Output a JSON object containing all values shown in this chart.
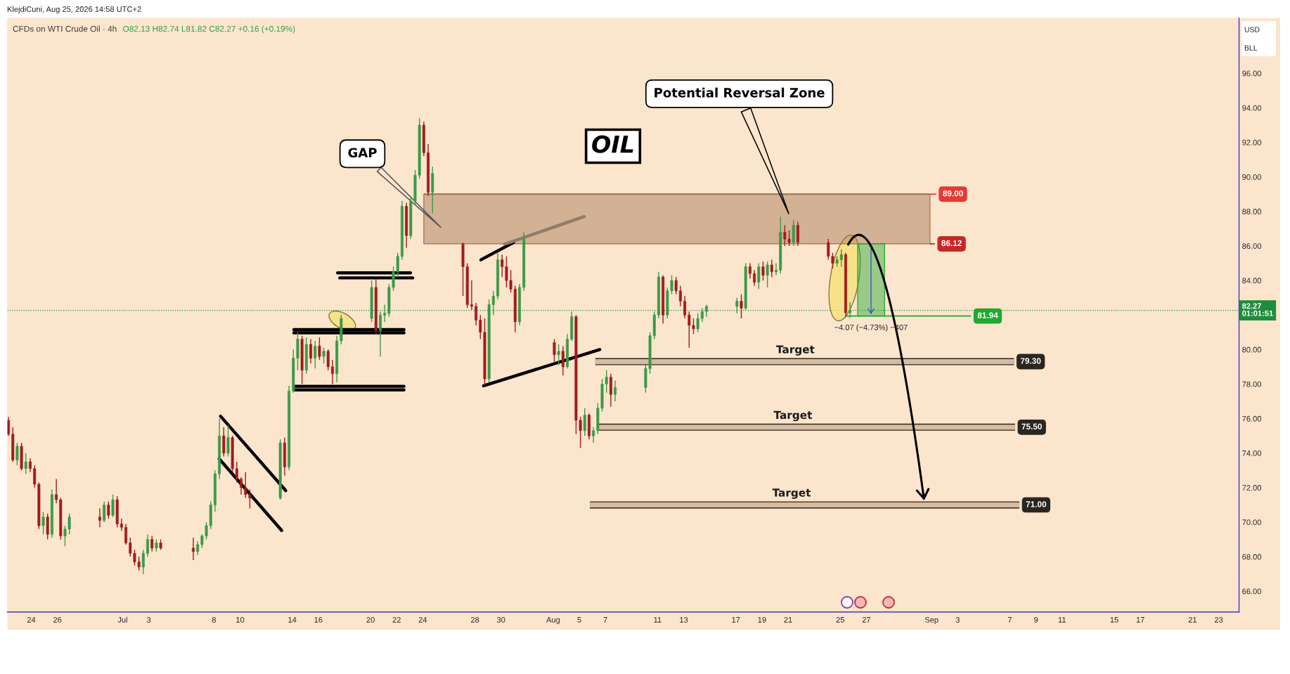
{
  "chart_data": {
    "type": "candlestick",
    "title": "CFDs on WTI Crude Oil · 4h",
    "subtitle": "O82.13 H82.74 L81.82 C82.27 +0.16 (+0.19%)",
    "x": [
      "2026-06-22T06:00",
      "2026-06-22T14:00",
      "2026-06-22T22:00",
      "2026-06-23T06:00",
      "2026-06-23T14:00",
      "2026-06-23T22:00",
      "2026-06-24T06:00",
      "2026-06-24T14:00",
      "2026-06-24T22:00",
      "2026-06-25T06:00",
      "2026-06-25T14:00",
      "2026-06-25T22:00",
      "2026-06-26T06:00",
      "2026-06-26T14:00",
      "2026-06-26T22:00",
      "2026-06-29T06:00",
      "2026-06-29T14:00",
      "2026-06-29T22:00",
      "2026-06-30T06:00",
      "2026-06-30T14:00",
      "2026-06-30T22:00",
      "2026-07-01T06:00",
      "2026-07-01T14:00",
      "2026-07-01T22:00",
      "2026-07-02T06:00",
      "2026-07-02T14:00",
      "2026-07-02T22:00",
      "2026-07-03T06:00",
      "2026-07-03T14:00",
      "2026-07-03T22:00",
      "2026-07-06T10:00",
      "2026-07-06T18:00",
      "2026-07-07T02:00",
      "2026-07-07T10:00",
      "2026-07-07T18:00",
      "2026-07-08T02:00",
      "2026-07-08T10:00",
      "2026-07-08T18:00",
      "2026-07-09T02:00",
      "2026-07-09T10:00",
      "2026-07-09T18:00",
      "2026-07-10T02:00",
      "2026-07-10T10:00",
      "2026-07-10T18:00",
      "2026-07-13T02:00",
      "2026-07-13T10:00",
      "2026-07-13T18:00",
      "2026-07-14T02:00",
      "2026-07-14T10:00",
      "2026-07-14T18:00",
      "2026-07-15T02:00",
      "2026-07-15T10:00",
      "2026-07-15T18:00",
      "2026-07-16T02:00",
      "2026-07-16T10:00",
      "2026-07-16T18:00",
      "2026-07-17T02:00",
      "2026-07-17T10:00",
      "2026-07-17T18:00",
      "2026-07-20T02:00",
      "2026-07-20T10:00",
      "2026-07-20T18:00",
      "2026-07-21T02:00",
      "2026-07-21T10:00",
      "2026-07-21T18:00",
      "2026-07-22T02:00",
      "2026-07-22T10:00",
      "2026-07-22T18:00",
      "2026-07-23T02:00",
      "2026-07-23T10:00",
      "2026-07-23T18:00",
      "2026-07-24T02:00",
      "2026-07-24T10:00",
      "2026-07-24T18:00",
      "2026-07-27T02:00",
      "2026-07-27T10:00",
      "2026-07-27T18:00",
      "2026-07-28T02:00",
      "2026-07-28T10:00",
      "2026-07-28T18:00",
      "2026-07-29T02:00",
      "2026-07-29T10:00",
      "2026-07-29T18:00",
      "2026-07-30T02:00",
      "2026-07-30T10:00",
      "2026-07-30T18:00",
      "2026-07-31T02:00",
      "2026-07-31T10:00",
      "2026-07-31T18:00",
      "2026-08-03T02:00",
      "2026-08-03T10:00",
      "2026-08-03T18:00",
      "2026-08-04T02:00",
      "2026-08-04T10:00",
      "2026-08-04T18:00",
      "2026-08-05T02:00",
      "2026-08-05T10:00",
      "2026-08-05T18:00",
      "2026-08-06T02:00",
      "2026-08-06T10:00",
      "2026-08-06T18:00",
      "2026-08-07T02:00",
      "2026-08-07T10:00",
      "2026-08-07T18:00",
      "2026-08-10T02:00",
      "2026-08-10T10:00",
      "2026-08-10T18:00",
      "2026-08-11T02:00",
      "2026-08-11T10:00",
      "2026-08-11T18:00",
      "2026-08-12T02:00",
      "2026-08-12T10:00",
      "2026-08-12T18:00",
      "2026-08-13T02:00",
      "2026-08-13T10:00",
      "2026-08-13T18:00",
      "2026-08-14T02:00",
      "2026-08-14T10:00",
      "2026-08-14T18:00",
      "2026-08-17T02:00",
      "2026-08-17T10:00",
      "2026-08-17T18:00",
      "2026-08-18T02:00",
      "2026-08-18T10:00",
      "2026-08-18T18:00",
      "2026-08-19T02:00",
      "2026-08-19T10:00",
      "2026-08-19T18:00",
      "2026-08-20T02:00",
      "2026-08-20T10:00",
      "2026-08-20T18:00",
      "2026-08-21T02:00",
      "2026-08-21T10:00",
      "2026-08-21T18:00",
      "2026-08-24T02:00",
      "2026-08-24T10:00",
      "2026-08-24T18:00",
      "2026-08-25T02:00",
      "2026-08-25T10:00",
      "2026-08-25T18:00"
    ],
    "ohlc": [
      [
        75.9,
        76.1,
        75.0,
        75.1
      ],
      [
        75.1,
        75.5,
        73.5,
        73.6
      ],
      [
        73.6,
        74.6,
        73.3,
        74.4
      ],
      [
        74.4,
        74.6,
        73.0,
        73.1
      ],
      [
        73.1,
        74.0,
        72.8,
        73.5
      ],
      [
        73.5,
        73.7,
        72.9,
        73.1
      ],
      [
        73.1,
        73.3,
        72.0,
        72.2
      ],
      [
        72.2,
        72.3,
        69.6,
        69.8
      ],
      [
        69.8,
        70.6,
        69.3,
        70.3
      ],
      [
        70.3,
        70.5,
        69.0,
        69.3
      ],
      [
        69.3,
        71.9,
        69.1,
        71.6
      ],
      [
        71.6,
        72.5,
        71.1,
        71.3
      ],
      [
        71.3,
        71.4,
        69.0,
        69.2
      ],
      [
        69.2,
        69.8,
        68.6,
        69.6
      ],
      [
        69.6,
        70.5,
        69.3,
        70.3
      ],
      [
        70.3,
        70.8,
        69.7,
        70.1
      ],
      [
        70.1,
        71.2,
        70.0,
        71.0
      ],
      [
        71.0,
        71.2,
        70.2,
        70.4
      ],
      [
        70.4,
        71.6,
        70.3,
        71.3
      ],
      [
        71.3,
        71.5,
        69.7,
        69.9
      ],
      [
        69.9,
        70.2,
        69.5,
        69.7
      ],
      [
        69.7,
        69.9,
        68.7,
        68.8
      ],
      [
        68.8,
        69.1,
        68.0,
        68.2
      ],
      [
        68.2,
        68.4,
        67.5,
        67.7
      ],
      [
        67.7,
        68.0,
        67.2,
        67.4
      ],
      [
        67.4,
        68.4,
        67.0,
        68.2
      ],
      [
        68.2,
        69.3,
        68.0,
        69.0
      ],
      [
        69.0,
        69.2,
        68.3,
        68.5
      ],
      [
        68.5,
        69.0,
        68.3,
        68.8
      ],
      [
        68.8,
        69.0,
        68.4,
        68.5
      ],
      [
        68.5,
        69.1,
        67.8,
        68.3
      ],
      [
        68.3,
        68.9,
        68.1,
        68.7
      ],
      [
        68.7,
        69.3,
        68.5,
        69.2
      ],
      [
        69.2,
        70.0,
        69.0,
        69.8
      ],
      [
        69.8,
        71.2,
        69.6,
        71.0
      ],
      [
        71.0,
        73.0,
        70.6,
        72.8
      ],
      [
        72.8,
        76.0,
        72.5,
        75.0
      ],
      [
        75.0,
        75.5,
        73.8,
        74.0
      ],
      [
        74.0,
        75.6,
        73.8,
        74.9
      ],
      [
        74.9,
        75.0,
        72.9,
        73.1
      ],
      [
        73.1,
        73.5,
        72.3,
        72.5
      ],
      [
        72.5,
        72.6,
        71.6,
        72.0
      ],
      [
        72.0,
        72.9,
        71.4,
        71.6
      ],
      [
        71.6,
        71.9,
        70.8,
        71.4
      ],
      [
        71.4,
        74.8,
        71.3,
        74.6
      ],
      [
        74.6,
        74.9,
        72.7,
        73.2
      ],
      [
        73.2,
        77.9,
        73.0,
        77.6
      ],
      [
        77.6,
        80.0,
        77.5,
        79.5
      ],
      [
        79.5,
        81.0,
        78.8,
        80.6
      ],
      [
        80.6,
        80.8,
        78.0,
        78.8
      ],
      [
        78.8,
        80.7,
        78.6,
        80.3
      ],
      [
        80.3,
        80.6,
        79.2,
        79.5
      ],
      [
        79.5,
        80.5,
        78.9,
        80.2
      ],
      [
        80.2,
        80.7,
        79.4,
        79.6
      ],
      [
        79.6,
        80.1,
        79.2,
        79.9
      ],
      [
        79.9,
        80.0,
        78.8,
        79.0
      ],
      [
        79.0,
        79.4,
        78.0,
        78.6
      ],
      [
        78.6,
        80.8,
        78.1,
        80.5
      ],
      [
        80.5,
        82.0,
        80.3,
        81.8
      ],
      [
        81.8,
        84.0,
        81.6,
        83.6
      ],
      [
        83.6,
        84.1,
        80.9,
        81.1
      ],
      [
        81.1,
        82.2,
        79.6,
        82.0
      ],
      [
        82.0,
        82.6,
        81.6,
        82.1
      ],
      [
        82.1,
        83.8,
        81.9,
        83.6
      ],
      [
        83.6,
        84.8,
        83.4,
        84.5
      ],
      [
        84.5,
        85.6,
        84.2,
        85.4
      ],
      [
        85.4,
        88.6,
        85.2,
        88.3
      ],
      [
        88.3,
        88.5,
        85.9,
        86.6
      ],
      [
        86.6,
        88.9,
        86.4,
        88.6
      ],
      [
        88.6,
        90.4,
        88.4,
        90.1
      ],
      [
        90.1,
        93.4,
        89.9,
        93.0
      ],
      [
        93.0,
        93.2,
        91.2,
        91.4
      ],
      [
        91.4,
        91.9,
        88.9,
        89.1
      ],
      [
        89.1,
        90.6,
        87.9,
        90.2
      ],
      [
        86.1,
        86.2,
        83.1,
        84.8
      ],
      [
        84.8,
        85.0,
        82.4,
        82.6
      ],
      [
        82.6,
        84.0,
        82.3,
        82.5
      ],
      [
        82.5,
        82.7,
        81.4,
        81.7
      ],
      [
        81.7,
        82.0,
        80.6,
        81.0
      ],
      [
        81.0,
        81.8,
        77.9,
        78.3
      ],
      [
        78.3,
        82.9,
        78.1,
        82.6
      ],
      [
        82.6,
        83.4,
        82.0,
        83.1
      ],
      [
        83.1,
        85.6,
        82.9,
        85.2
      ],
      [
        85.2,
        85.5,
        84.2,
        84.8
      ],
      [
        84.8,
        85.4,
        83.6,
        84.0
      ],
      [
        84.0,
        84.6,
        83.3,
        83.5
      ],
      [
        83.5,
        83.7,
        81.0,
        81.6
      ],
      [
        81.6,
        83.8,
        81.4,
        83.6
      ],
      [
        83.6,
        86.8,
        83.4,
        86.4
      ],
      [
        80.4,
        80.6,
        79.3,
        79.7
      ],
      [
        79.7,
        80.3,
        79.1,
        79.9
      ],
      [
        79.9,
        80.2,
        78.5,
        79.0
      ],
      [
        79.0,
        80.9,
        78.9,
        80.6
      ],
      [
        80.6,
        82.2,
        80.5,
        81.9
      ],
      [
        81.9,
        82.0,
        75.1,
        75.9
      ],
      [
        75.9,
        76.1,
        74.3,
        75.3
      ],
      [
        75.3,
        76.6,
        75.0,
        76.2
      ],
      [
        76.2,
        76.3,
        74.8,
        75.0
      ],
      [
        75.0,
        75.5,
        74.6,
        75.3
      ],
      [
        75.3,
        76.9,
        75.1,
        76.6
      ],
      [
        76.6,
        78.3,
        76.4,
        78.0
      ],
      [
        78.0,
        78.8,
        77.5,
        78.4
      ],
      [
        78.4,
        78.6,
        76.7,
        77.4
      ],
      [
        77.4,
        78.2,
        77.0,
        77.8
      ],
      [
        77.8,
        79.1,
        77.5,
        78.9
      ],
      [
        78.9,
        81.0,
        78.6,
        80.8
      ],
      [
        80.8,
        82.2,
        80.6,
        82.0
      ],
      [
        82.0,
        84.5,
        81.8,
        84.2
      ],
      [
        84.2,
        84.3,
        81.5,
        82.0
      ],
      [
        82.0,
        83.6,
        81.8,
        83.4
      ],
      [
        83.4,
        84.3,
        83.2,
        84.0
      ],
      [
        84.0,
        84.2,
        83.2,
        83.4
      ],
      [
        83.4,
        83.7,
        82.5,
        82.8
      ],
      [
        82.8,
        83.1,
        81.8,
        82.0
      ],
      [
        82.0,
        82.2,
        80.1,
        81.4
      ],
      [
        81.4,
        81.8,
        80.9,
        81.2
      ],
      [
        81.2,
        82.1,
        81.0,
        81.8
      ],
      [
        81.8,
        82.4,
        81.6,
        82.2
      ],
      [
        82.2,
        82.6,
        81.9,
        82.5
      ],
      [
        82.5,
        83.0,
        82.1,
        82.8
      ],
      [
        82.8,
        83.2,
        81.8,
        82.4
      ],
      [
        82.4,
        85.0,
        82.3,
        84.8
      ],
      [
        84.8,
        85.0,
        84.1,
        84.4
      ],
      [
        84.4,
        84.6,
        83.7,
        83.9
      ],
      [
        83.9,
        85.0,
        83.5,
        84.8
      ],
      [
        84.8,
        85.1,
        84.0,
        84.3
      ],
      [
        84.3,
        85.1,
        83.6,
        84.9
      ],
      [
        84.9,
        85.2,
        84.2,
        84.5
      ],
      [
        84.5,
        85.0,
        84.3,
        84.6
      ],
      [
        84.6,
        87.7,
        84.4,
        86.8
      ],
      [
        86.8,
        87.2,
        86.0,
        86.4
      ],
      [
        86.4,
        86.9,
        86.0,
        86.2
      ],
      [
        86.2,
        87.5,
        86.0,
        87.2
      ],
      [
        87.2,
        87.4,
        86.0,
        86.2
      ],
      [
        86.2,
        86.4,
        85.2,
        85.4
      ],
      [
        85.4,
        85.6,
        84.7,
        85.0
      ],
      [
        85.0,
        85.4,
        84.8,
        85.2
      ],
      [
        85.2,
        85.8,
        84.8,
        85.5
      ],
      [
        85.5,
        85.6,
        81.9,
        82.13
      ],
      [
        82.13,
        82.74,
        81.82,
        82.27
      ]
    ],
    "xlim": [
      "2026-06-22T04:00",
      "2026-09-24T13:30"
    ],
    "xticks": [
      {
        "value": "2026-06-24",
        "label": "24"
      },
      {
        "value": "2026-06-26",
        "label": "26"
      },
      {
        "value": "2026-07-01",
        "label": "Jul"
      },
      {
        "value": "2026-07-03",
        "label": "3"
      },
      {
        "value": "2026-07-08",
        "label": "8"
      },
      {
        "value": "2026-07-10",
        "label": "10"
      },
      {
        "value": "2026-07-14",
        "label": "14"
      },
      {
        "value": "2026-07-16",
        "label": "16"
      },
      {
        "value": "2026-07-20",
        "label": "20"
      },
      {
        "value": "2026-07-22",
        "label": "22"
      },
      {
        "value": "2026-07-24",
        "label": "24"
      },
      {
        "value": "2026-07-28",
        "label": "28"
      },
      {
        "value": "2026-07-30",
        "label": "30"
      },
      {
        "value": "2026-08-03",
        "label": "Aug"
      },
      {
        "value": "2026-08-05",
        "label": "5"
      },
      {
        "value": "2026-08-07",
        "label": "7"
      },
      {
        "value": "2026-08-11",
        "label": "11"
      },
      {
        "value": "2026-08-13",
        "label": "13"
      },
      {
        "value": "2026-08-17",
        "label": "17"
      },
      {
        "value": "2026-08-19",
        "label": "19"
      },
      {
        "value": "2026-08-21",
        "label": "21"
      },
      {
        "value": "2026-08-25",
        "label": "25"
      },
      {
        "value": "2026-08-27",
        "label": "27"
      },
      {
        "value": "2026-09-01",
        "label": "Sep"
      },
      {
        "value": "2026-09-03",
        "label": "3"
      },
      {
        "value": "2026-09-07",
        "label": "7"
      },
      {
        "value": "2026-09-09",
        "label": "9"
      },
      {
        "value": "2026-09-11",
        "label": "11"
      },
      {
        "value": "2026-09-15",
        "label": "15"
      },
      {
        "value": "2026-09-17",
        "label": "17"
      },
      {
        "value": "2026-09-21",
        "label": "21"
      },
      {
        "value": "2026-09-23",
        "label": "23"
      }
    ],
    "ylim": [
      64.8,
      99.2
    ],
    "yticks": [
      {
        "value": 66,
        "label": "66.00"
      },
      {
        "value": 68,
        "label": "68.00"
      },
      {
        "value": 70,
        "label": "70.00"
      },
      {
        "value": 72,
        "label": "72.00"
      },
      {
        "value": 74,
        "label": "74.00"
      },
      {
        "value": 76,
        "label": "76.00"
      },
      {
        "value": 78,
        "label": "78.00"
      },
      {
        "value": 80,
        "label": "80.00"
      },
      {
        "value": 84,
        "label": "84.00"
      },
      {
        "value": 86,
        "label": "86.00"
      },
      {
        "value": 88,
        "label": "88.00"
      },
      {
        "value": 90,
        "label": "90.00"
      },
      {
        "value": 92,
        "label": "92.00"
      },
      {
        "value": 94,
        "label": "94.00"
      },
      {
        "value": 96,
        "label": "96.00"
      }
    ],
    "series": [
      {
        "type": "line",
        "color": "#a07050",
        "x": [
          "2026-07-24T02:00",
          "2026-08-31T21:00"
        ],
        "values": [
          89.0,
          89.0
        ],
        "lower": [
          86.12,
          86.12
        ],
        "upper": [
          89.0,
          89.0
        ]
      },
      {
        "type": "line",
        "color": "#e53935",
        "x": [
          "2026-08-31T21:00",
          "2026-09-01T08:30"
        ],
        "values": [
          89.0,
          89.0
        ],
        "value_labels": [
          null,
          "89.00"
        ]
      },
      {
        "type": "line",
        "color": "#c62828",
        "x": [
          "2026-08-31T21:00",
          "2026-09-01T06:00"
        ],
        "values": [
          86.12,
          86.12
        ],
        "value_labels": [
          null,
          "86.12"
        ]
      },
      {
        "type": "line",
        "color": "#22a832",
        "x": [
          "2026-08-25T10:00",
          "2026-08-26T08:00",
          "2026-08-28T09:30",
          "2026-09-04T00:30"
        ],
        "values": [
          81.94,
          81.94,
          81.94,
          81.94
        ],
        "lower": [
          null,
          81.94,
          81.94,
          null
        ],
        "upper": [
          null,
          86.12,
          86.12,
          null
        ],
        "value_labels": [
          null,
          null,
          null,
          "81.94"
        ]
      },
      {
        "type": "line",
        "color": "#d8bc9e",
        "x": [
          "2026-08-06T05:30",
          "2026-09-07T07:30"
        ],
        "values": [
          79.3,
          79.3
        ],
        "value_labels": [
          null,
          "79.30"
        ]
      },
      {
        "type": "line",
        "color": "#d8bc9e",
        "x": [
          "2026-08-06T11:00",
          "2026-09-07T09:30"
        ],
        "values": [
          75.5,
          75.5
        ],
        "value_labels": [
          null,
          "75.50"
        ]
      },
      {
        "type": "line",
        "color": "#d8bc9e",
        "x": [
          "2026-08-05T19:30",
          "2026-09-07T17:30"
        ],
        "values": [
          71.0,
          71.0
        ],
        "value_labels": [
          null,
          "71.00"
        ]
      },
      {
        "type": "line",
        "color": "#000000",
        "x": [
          "2026-07-08T12:00",
          "2026-07-13T12:00"
        ],
        "values": [
          76.14,
          71.83
        ]
      },
      {
        "type": "line",
        "color": "#000000",
        "x": [
          "2026-07-08T09:30",
          "2026-07-13T04:30"
        ],
        "values": [
          73.67,
          69.52
        ]
      },
      {
        "type": "line",
        "color": "#000000",
        "x": [
          "2026-07-17T11:30",
          "2026-07-23T01:30"
        ],
        "values": [
          84.44,
          84.44
        ]
      },
      {
        "type": "line",
        "color": "#000000",
        "x": [
          "2026-07-17T15:30",
          "2026-07-23T05:30"
        ],
        "values": [
          84.15,
          84.15
        ]
      },
      {
        "type": "line",
        "color": "#000000",
        "x": [
          "2026-07-14T03:00",
          "2026-07-22T13:30"
        ],
        "values": [
          81.15,
          81.15
        ]
      },
      {
        "type": "line",
        "color": "#000000",
        "x": [
          "2026-07-14T03:00",
          "2026-07-22T13:30"
        ],
        "values": [
          80.97,
          80.97
        ]
      },
      {
        "type": "line",
        "color": "#000000",
        "x": [
          "2026-07-14T03:00",
          "2026-07-22T13:30"
        ],
        "values": [
          77.87,
          77.87
        ]
      },
      {
        "type": "line",
        "color": "#000000",
        "x": [
          "2026-07-14T03:00",
          "2026-07-22T13:30"
        ],
        "values": [
          77.66,
          77.66
        ]
      },
      {
        "type": "line",
        "color": "#000000",
        "x": [
          "2026-07-28T11:00",
          "2026-07-30T23:00"
        ],
        "values": [
          85.2,
          86.2
        ]
      },
      {
        "type": "line",
        "color": "#8f7c6a",
        "x": [
          "2026-07-30T06:30",
          "2026-08-05T09:00"
        ],
        "values": [
          86.1,
          87.7
        ]
      },
      {
        "type": "line",
        "color": "#000000",
        "x": [
          "2026-07-28T16:00",
          "2026-08-06T13:30"
        ],
        "values": [
          77.9,
          80.0
        ]
      }
    ],
    "ref_lines": [
      {
        "axis": "y",
        "value": 82.27,
        "label": "82.27\n01:01:51",
        "color": "#1e8e3e",
        "line_style": "dotted"
      }
    ],
    "annotations": [
      "KlejdiCuni, Aug 25, 2026 14:58 UTC+2",
      "OIL",
      "USD",
      "BLL",
      "GAP",
      "Potential Reversal Zone",
      {
        "text": "Target",
        "x": "2026-08-21T13:30",
        "y": 79.3
      },
      {
        "text": "Target",
        "x": "2026-08-21T09:00",
        "y": 75.5
      },
      {
        "text": "Target",
        "x": "2026-08-21T06:30",
        "y": 71.0
      },
      {
        "text": "−4.07 (−4.73%) −407",
        "x": "2026-08-27T08:30",
        "y": 81.94
      }
    ]
  }
}
